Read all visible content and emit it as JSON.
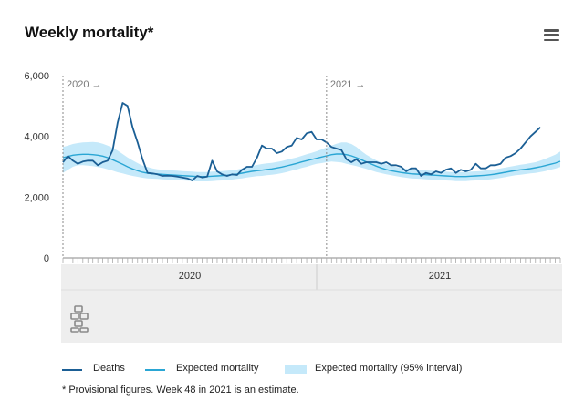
{
  "title": "Weekly mortality*",
  "footnote": "* Provisional figures. Week 48 in 2021 is an estimate.",
  "menu_icon": "hamburger-menu-icon",
  "logo_icon": "cbs-logo-icon",
  "colors": {
    "deaths": "#1b5f95",
    "expected": "#2aa6d4",
    "interval": "#c5e9fa",
    "axis": "#999999",
    "navigator_bg": "#eeeeee"
  },
  "legend": [
    {
      "label": "Deaths",
      "kind": "line",
      "color": "#1b5f95"
    },
    {
      "label": "Expected mortality",
      "kind": "line",
      "color": "#2aa6d4"
    },
    {
      "label": "Expected mortality (95% interval)",
      "kind": "area",
      "color": "#c5e9fa"
    }
  ],
  "chart_data": {
    "type": "line",
    "title": "Weekly mortality*",
    "x_unit": "week",
    "year_markers": [
      "2020 →",
      "2021 →"
    ],
    "navigator_labels": [
      "2020",
      "2021"
    ],
    "ylim": [
      0,
      6000
    ],
    "yticks": [
      0,
      2000,
      4000,
      6000
    ],
    "ytick_labels": [
      "0",
      "2,000",
      "4,000",
      "6,000"
    ],
    "grid": false,
    "legend_position": "bottom-left",
    "x_weeks": [
      1,
      2,
      3,
      4,
      5,
      6,
      7,
      8,
      9,
      10,
      11,
      12,
      13,
      14,
      15,
      16,
      17,
      18,
      19,
      20,
      21,
      22,
      23,
      24,
      25,
      26,
      27,
      28,
      29,
      30,
      31,
      32,
      33,
      34,
      35,
      36,
      37,
      38,
      39,
      40,
      41,
      42,
      43,
      44,
      45,
      46,
      47,
      48,
      49,
      50,
      51,
      52,
      53,
      54,
      55,
      56,
      57,
      58,
      59,
      60,
      61,
      62,
      63,
      64,
      65,
      66,
      67,
      68,
      69,
      70,
      71,
      72,
      73,
      74,
      75,
      76,
      77,
      78,
      79,
      80,
      81,
      82,
      83,
      84,
      85,
      86,
      87,
      88,
      89,
      90,
      91,
      92,
      93,
      94,
      95,
      96,
      97,
      98,
      99,
      100,
      101
    ],
    "series": [
      {
        "name": "Deaths",
        "values": [
          3150,
          3350,
          3200,
          3100,
          3170,
          3200,
          3200,
          3050,
          3150,
          3200,
          3550,
          4450,
          5100,
          5000,
          4300,
          3800,
          3250,
          2800,
          2780,
          2750,
          2700,
          2710,
          2700,
          2680,
          2650,
          2620,
          2550,
          2700,
          2650,
          2680,
          3200,
          2850,
          2750,
          2700,
          2750,
          2730,
          2900,
          3000,
          3000,
          3300,
          3700,
          3600,
          3600,
          3450,
          3500,
          3650,
          3700,
          3950,
          3900,
          4100,
          4150,
          3900,
          3900,
          3800,
          3650,
          3600,
          3550,
          3250,
          3150,
          3250,
          3100,
          3150,
          3150,
          3150,
          3100,
          3150,
          3050,
          3050,
          3000,
          2850,
          2950,
          2950,
          2700,
          2800,
          2750,
          2850,
          2800,
          2900,
          2950,
          2800,
          2900,
          2850,
          2900,
          3100,
          2950,
          2950,
          3050,
          3050,
          3100,
          3300,
          3350,
          3450,
          3600,
          3800,
          4000,
          4150,
          4300,
          null,
          null,
          null,
          null
        ]
      },
      {
        "name": "Expected mortality",
        "values": [
          3300,
          3340,
          3380,
          3400,
          3410,
          3410,
          3400,
          3380,
          3350,
          3300,
          3230,
          3160,
          3080,
          3000,
          2930,
          2870,
          2820,
          2790,
          2770,
          2760,
          2750,
          2740,
          2730,
          2720,
          2710,
          2700,
          2690,
          2680,
          2680,
          2680,
          2690,
          2700,
          2710,
          2720,
          2740,
          2760,
          2790,
          2820,
          2850,
          2870,
          2890,
          2910,
          2930,
          2960,
          2990,
          3030,
          3070,
          3110,
          3160,
          3200,
          3240,
          3280,
          3320,
          3360,
          3400,
          3420,
          3420,
          3400,
          3360,
          3300,
          3230,
          3160,
          3090,
          3020,
          2960,
          2910,
          2870,
          2840,
          2810,
          2790,
          2770,
          2760,
          2750,
          2740,
          2730,
          2720,
          2710,
          2700,
          2690,
          2680,
          2680,
          2680,
          2690,
          2700,
          2710,
          2720,
          2740,
          2760,
          2790,
          2820,
          2850,
          2880,
          2900,
          2920,
          2940,
          2970,
          3000,
          3040,
          3080,
          3120,
          3180
        ]
      },
      {
        "name": "Expected mortality (95% interval)",
        "type": "area",
        "lower": [
          2800,
          2900,
          3000,
          3050,
          3050,
          3040,
          3020,
          2990,
          2960,
          2920,
          2870,
          2820,
          2780,
          2740,
          2700,
          2670,
          2640,
          2620,
          2610,
          2600,
          2590,
          2580,
          2570,
          2560,
          2550,
          2540,
          2530,
          2520,
          2520,
          2520,
          2530,
          2540,
          2550,
          2560,
          2580,
          2600,
          2620,
          2650,
          2670,
          2690,
          2700,
          2720,
          2740,
          2760,
          2790,
          2830,
          2870,
          2910,
          2960,
          3000,
          3050,
          3100,
          3120,
          3150,
          3170,
          3160,
          3140,
          3100,
          3060,
          3020,
          2980,
          2930,
          2880,
          2830,
          2790,
          2750,
          2720,
          2690,
          2660,
          2640,
          2620,
          2610,
          2600,
          2590,
          2580,
          2570,
          2560,
          2550,
          2540,
          2530,
          2530,
          2530,
          2540,
          2550,
          2560,
          2570,
          2590,
          2610,
          2630,
          2660,
          2690,
          2720,
          2740,
          2760,
          2780,
          2800,
          2830,
          2860,
          2900,
          2940,
          2990
        ],
        "upper": [
          3650,
          3700,
          3750,
          3780,
          3800,
          3810,
          3820,
          3800,
          3760,
          3700,
          3620,
          3530,
          3420,
          3310,
          3210,
          3120,
          3040,
          2990,
          2950,
          2920,
          2900,
          2890,
          2880,
          2870,
          2860,
          2850,
          2840,
          2830,
          2830,
          2830,
          2840,
          2850,
          2860,
          2870,
          2890,
          2910,
          2950,
          2990,
          3030,
          3060,
          3090,
          3110,
          3130,
          3160,
          3190,
          3230,
          3270,
          3310,
          3360,
          3410,
          3460,
          3510,
          3570,
          3640,
          3700,
          3760,
          3800,
          3800,
          3750,
          3650,
          3520,
          3400,
          3300,
          3210,
          3140,
          3080,
          3030,
          2990,
          2960,
          2940,
          2920,
          2900,
          2890,
          2880,
          2870,
          2860,
          2850,
          2840,
          2830,
          2830,
          2830,
          2830,
          2840,
          2850,
          2860,
          2880,
          2900,
          2920,
          2950,
          2980,
          3010,
          3040,
          3070,
          3090,
          3120,
          3150,
          3200,
          3260,
          3330,
          3400,
          3500
        ]
      }
    ]
  }
}
